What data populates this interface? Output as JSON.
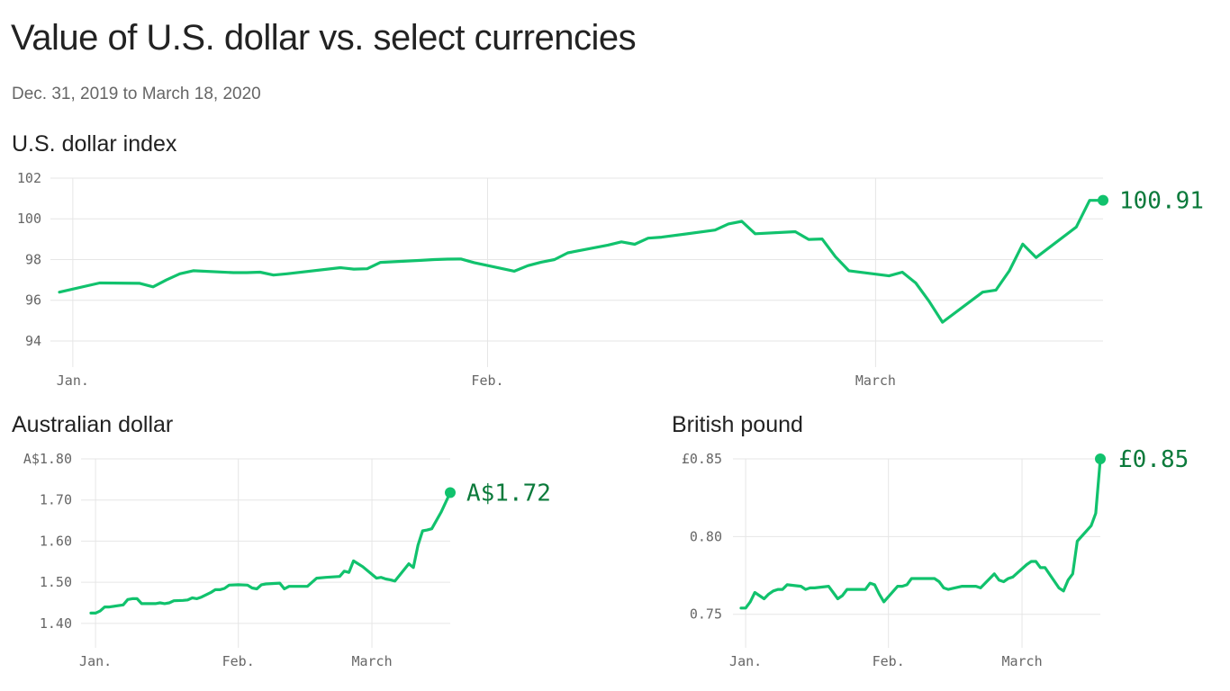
{
  "header": {
    "title": "Value of U.S. dollar vs. select currencies",
    "subtitle": "Dec. 31, 2019 to March 18, 2020"
  },
  "colors": {
    "line": "#11c26d",
    "label": "#0b7a3b",
    "grid": "#e6e6e6",
    "tick": "#666666"
  },
  "chart_data": [
    {
      "type": "line",
      "title": "U.S. dollar index",
      "x": [
        "2019-12-31",
        "2020-01-03",
        "2020-01-06",
        "2020-01-07",
        "2020-01-08",
        "2020-01-09",
        "2020-01-10",
        "2020-01-13",
        "2020-01-14",
        "2020-01-15",
        "2020-01-16",
        "2020-01-17",
        "2020-01-21",
        "2020-01-22",
        "2020-01-23",
        "2020-01-24",
        "2020-01-27",
        "2020-01-28",
        "2020-01-29",
        "2020-01-30",
        "2020-01-31",
        "2020-02-03",
        "2020-02-04",
        "2020-02-05",
        "2020-02-06",
        "2020-02-07",
        "2020-02-10",
        "2020-02-11",
        "2020-02-12",
        "2020-02-13",
        "2020-02-14",
        "2020-02-18",
        "2020-02-19",
        "2020-02-20",
        "2020-02-21",
        "2020-02-24",
        "2020-02-25",
        "2020-02-26",
        "2020-02-27",
        "2020-02-28",
        "2020-03-02",
        "2020-03-03",
        "2020-03-04",
        "2020-03-05",
        "2020-03-06",
        "2020-03-09",
        "2020-03-10",
        "2020-03-11",
        "2020-03-12",
        "2020-03-13",
        "2020-03-16",
        "2020-03-17",
        "2020-03-18"
      ],
      "values": [
        96.4,
        96.85,
        96.83,
        96.66,
        97.0,
        97.3,
        97.45,
        97.36,
        97.36,
        97.38,
        97.24,
        97.3,
        97.6,
        97.53,
        97.55,
        97.86,
        97.96,
        98.0,
        98.02,
        98.03,
        97.85,
        97.43,
        97.7,
        97.87,
        98.0,
        98.33,
        98.71,
        98.87,
        98.75,
        99.05,
        99.1,
        99.45,
        99.75,
        99.88,
        99.27,
        99.37,
        98.99,
        99.01,
        98.14,
        97.45,
        97.2,
        97.38,
        96.85,
        95.95,
        94.92,
        96.4,
        96.5,
        97.45,
        98.76,
        98.1,
        99.6,
        100.91,
        100.91
      ],
      "xticks": [
        {
          "date": "2020-01-01",
          "label": "Jan."
        },
        {
          "date": "2020-02-01",
          "label": "Feb."
        },
        {
          "date": "2020-03-01",
          "label": "March"
        }
      ],
      "yticks": [
        {
          "value": 94,
          "label": "94"
        },
        {
          "value": 96,
          "label": "96"
        },
        {
          "value": 98,
          "label": "98"
        },
        {
          "value": 100,
          "label": "100"
        },
        {
          "value": 102,
          "label": "102"
        }
      ],
      "ylim": [
        93.6,
        102
      ],
      "end_label": "100.91",
      "grid": true
    },
    {
      "type": "line",
      "title": "Australian dollar",
      "x": [
        "2019-12-31",
        "2020-01-01",
        "2020-01-02",
        "2020-01-03",
        "2020-01-04",
        "2020-01-07",
        "2020-01-08",
        "2020-01-09",
        "2020-01-10",
        "2020-01-11",
        "2020-01-13",
        "2020-01-14",
        "2020-01-15",
        "2020-01-16",
        "2020-01-17",
        "2020-01-18",
        "2020-01-20",
        "2020-01-21",
        "2020-01-22",
        "2020-01-23",
        "2020-01-24",
        "2020-01-26",
        "2020-01-27",
        "2020-01-28",
        "2020-01-29",
        "2020-01-30",
        "2020-02-01",
        "2020-02-03",
        "2020-02-04",
        "2020-02-05",
        "2020-02-06",
        "2020-02-07",
        "2020-02-10",
        "2020-02-11",
        "2020-02-12",
        "2020-02-13",
        "2020-02-14",
        "2020-02-16",
        "2020-02-18",
        "2020-02-20",
        "2020-02-23",
        "2020-02-24",
        "2020-02-25",
        "2020-02-26",
        "2020-02-27",
        "2020-02-28",
        "2020-03-02",
        "2020-03-03",
        "2020-03-04",
        "2020-03-05",
        "2020-03-06",
        "2020-03-09",
        "2020-03-10",
        "2020-03-11",
        "2020-03-12",
        "2020-03-13",
        "2020-03-14",
        "2020-03-16",
        "2020-03-18"
      ],
      "values": [
        1.425,
        1.425,
        1.43,
        1.44,
        1.44,
        1.445,
        1.458,
        1.46,
        1.46,
        1.448,
        1.448,
        1.448,
        1.45,
        1.448,
        1.45,
        1.455,
        1.456,
        1.457,
        1.462,
        1.46,
        1.464,
        1.475,
        1.482,
        1.482,
        1.485,
        1.493,
        1.494,
        1.493,
        1.486,
        1.484,
        1.494,
        1.496,
        1.498,
        1.484,
        1.49,
        1.49,
        1.49,
        1.49,
        1.51,
        1.512,
        1.514,
        1.527,
        1.524,
        1.552,
        1.545,
        1.538,
        1.51,
        1.512,
        1.508,
        1.506,
        1.503,
        1.545,
        1.536,
        1.59,
        1.625,
        1.627,
        1.63,
        1.67,
        1.718
      ],
      "xticks": [
        {
          "date": "2020-01-01",
          "label": "Jan."
        },
        {
          "date": "2020-02-01",
          "label": "Feb."
        },
        {
          "date": "2020-03-01",
          "label": "March"
        }
      ],
      "yticks": [
        {
          "value": 1.4,
          "label": "1.40"
        },
        {
          "value": 1.5,
          "label": "1.50"
        },
        {
          "value": 1.6,
          "label": "1.60"
        },
        {
          "value": 1.7,
          "label": "1.70"
        },
        {
          "value": 1.8,
          "label": "A$1.80"
        }
      ],
      "ylim": [
        1.38,
        1.8
      ],
      "end_label": "A$1.72",
      "grid": true
    },
    {
      "type": "line",
      "title": "British pound",
      "x": [
        "2019-12-31",
        "2020-01-01",
        "2020-01-02",
        "2020-01-03",
        "2020-01-05",
        "2020-01-06",
        "2020-01-07",
        "2020-01-08",
        "2020-01-09",
        "2020-01-10",
        "2020-01-13",
        "2020-01-14",
        "2020-01-15",
        "2020-01-16",
        "2020-01-19",
        "2020-01-20",
        "2020-01-21",
        "2020-01-22",
        "2020-01-23",
        "2020-01-24",
        "2020-01-27",
        "2020-01-28",
        "2020-01-29",
        "2020-01-30",
        "2020-01-31",
        "2020-02-03",
        "2020-02-04",
        "2020-02-05",
        "2020-02-06",
        "2020-02-07",
        "2020-02-10",
        "2020-02-11",
        "2020-02-12",
        "2020-02-13",
        "2020-02-14",
        "2020-02-17",
        "2020-02-18",
        "2020-02-19",
        "2020-02-20",
        "2020-02-21",
        "2020-02-24",
        "2020-02-25",
        "2020-02-26",
        "2020-02-27",
        "2020-02-28",
        "2020-03-02",
        "2020-03-03",
        "2020-03-04",
        "2020-03-05",
        "2020-03-06",
        "2020-03-09",
        "2020-03-10",
        "2020-03-11",
        "2020-03-12",
        "2020-03-13",
        "2020-03-16",
        "2020-03-17",
        "2020-03-18"
      ],
      "values": [
        0.754,
        0.754,
        0.758,
        0.764,
        0.76,
        0.763,
        0.765,
        0.766,
        0.766,
        0.769,
        0.768,
        0.766,
        0.767,
        0.767,
        0.768,
        0.764,
        0.76,
        0.762,
        0.766,
        0.766,
        0.766,
        0.77,
        0.769,
        0.763,
        0.758,
        0.768,
        0.768,
        0.769,
        0.773,
        0.773,
        0.773,
        0.773,
        0.771,
        0.767,
        0.766,
        0.768,
        0.768,
        0.768,
        0.768,
        0.767,
        0.776,
        0.772,
        0.771,
        0.773,
        0.774,
        0.782,
        0.784,
        0.784,
        0.78,
        0.78,
        0.767,
        0.765,
        0.772,
        0.776,
        0.797,
        0.807,
        0.815,
        0.85
      ],
      "xticks": [
        {
          "date": "2020-01-01",
          "label": "Jan."
        },
        {
          "date": "2020-02-01",
          "label": "Feb."
        },
        {
          "date": "2020-03-01",
          "label": "March"
        }
      ],
      "yticks": [
        {
          "value": 0.75,
          "label": "0.75"
        },
        {
          "value": 0.8,
          "label": "0.80"
        },
        {
          "value": 0.85,
          "label": "£0.85"
        }
      ],
      "ylim": [
        0.74,
        0.85
      ],
      "end_label": "£0.85",
      "grid": true
    }
  ]
}
